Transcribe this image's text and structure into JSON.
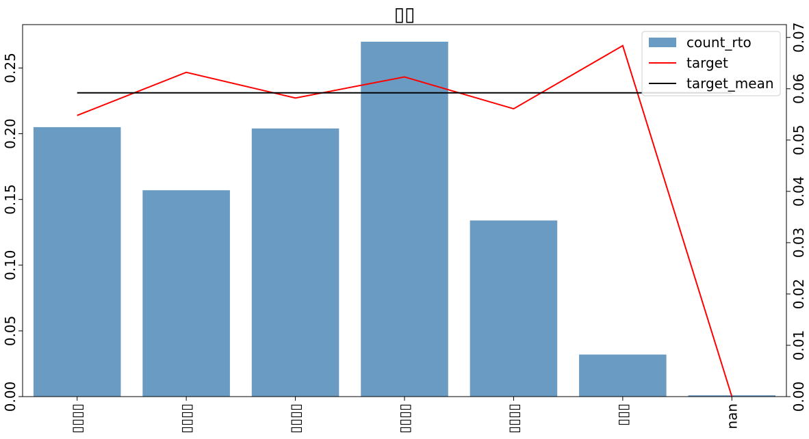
{
  "chart_data": {
    "type": "bar",
    "title": "▯▯",
    "categories": [
      "▯▯▯▯",
      "▯▯▯▯",
      "▯▯▯▯",
      "▯▯▯▯",
      "▯▯▯▯",
      "▯▯▯",
      "nan"
    ],
    "series": [
      {
        "name": "count_rto",
        "type": "bar",
        "axis": "left",
        "color": "#6a9bc3",
        "values": [
          0.205,
          0.157,
          0.204,
          0.27,
          0.134,
          0.032,
          0.001
        ]
      },
      {
        "name": "target",
        "type": "line",
        "axis": "right",
        "color": "#ff0000",
        "values": [
          0.0548,
          0.0632,
          0.0582,
          0.0623,
          0.0561,
          0.0684,
          0.0
        ]
      },
      {
        "name": "target_mean",
        "type": "line",
        "axis": "right",
        "color": "#000000",
        "values": [
          0.0592,
          0.0592,
          0.0592,
          0.0592,
          0.0592,
          0.0592,
          0.0592
        ]
      }
    ],
    "ylim_left": [
      0,
      0.283
    ],
    "ylim_right": [
      0,
      0.0725
    ],
    "yticks_left": [
      "0.00",
      "0.05",
      "0.10",
      "0.15",
      "0.20",
      "0.25"
    ],
    "yticks_right": [
      "0.00",
      "0.01",
      "0.02",
      "0.03",
      "0.04",
      "0.05",
      "0.06",
      "0.07"
    ],
    "legend": {
      "placement": "top-right",
      "entries": [
        "count_rto",
        "target",
        "target_mean"
      ]
    },
    "grid": false
  }
}
